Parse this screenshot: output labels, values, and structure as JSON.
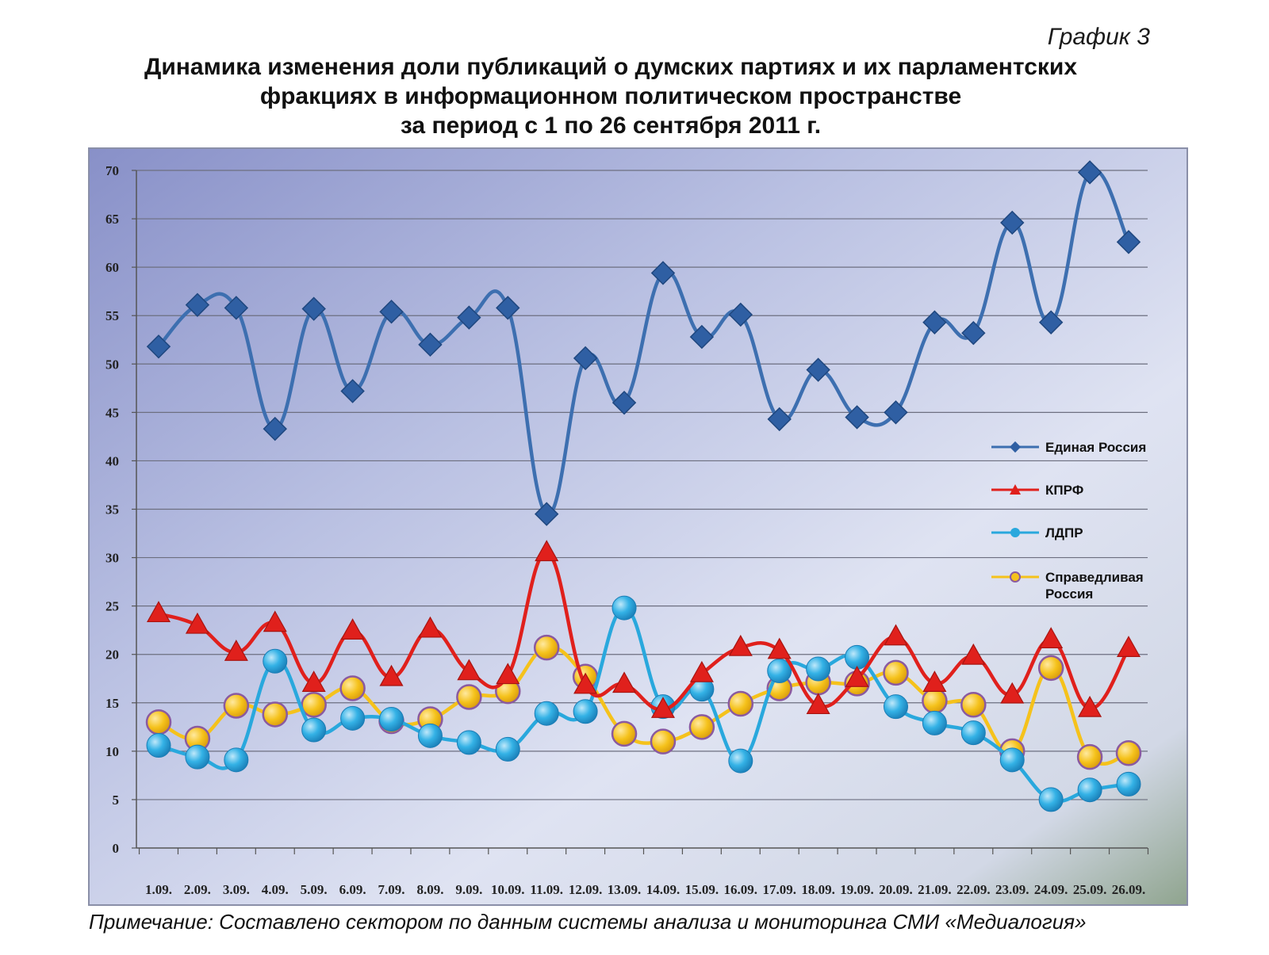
{
  "caption": "График 3",
  "title_lines": [
    "Динамика изменения доли публикаций о думских партиях и их парламентских",
    "фракциях в информационном политическом пространстве",
    "за период с 1 по 26 сентября 2011 г."
  ],
  "note": "Примечание: Составлено сектором по данным системы анализа и мониторинга СМИ «Медиалогия»",
  "chart_data": {
    "type": "line",
    "title": "Динамика изменения доли публикаций о думских партиях и их парламентских фракциях в информационном политическом пространстве за период с 1 по 26 сентября 2011 г.",
    "categories": [
      "1.09.",
      "2.09.",
      "3.09.",
      "4.09.",
      "5.09.",
      "6.09.",
      "7.09.",
      "8.09.",
      "9.09.",
      "10.09.",
      "11.09.",
      "12.09.",
      "13.09.",
      "14.09.",
      "15.09.",
      "16.09.",
      "17.09.",
      "18.09.",
      "19.09.",
      "20.09.",
      "21.09.",
      "22.09.",
      "23.09.",
      "24.09.",
      "25.09.",
      "26.09."
    ],
    "ylim": [
      0,
      70
    ],
    "yticks": [
      0,
      5,
      10,
      15,
      20,
      25,
      30,
      35,
      40,
      45,
      50,
      55,
      60,
      65,
      70
    ],
    "grid": true,
    "legend_position": "right",
    "series": [
      {
        "name": "Единая Россия",
        "color": "#3d6fb0",
        "marker": "diamond",
        "values": [
          51.8,
          56.1,
          55.8,
          43.3,
          55.7,
          47.2,
          55.4,
          52.0,
          54.8,
          55.8,
          34.5,
          50.6,
          46.0,
          59.4,
          52.8,
          55.1,
          44.3,
          49.4,
          44.5,
          45.0,
          54.3,
          53.2,
          64.6,
          54.3,
          69.8,
          62.6
        ]
      },
      {
        "name": "КПРФ",
        "color": "#e0201c",
        "marker": "triangle",
        "values": [
          24.2,
          23.0,
          20.2,
          23.2,
          17.0,
          22.4,
          17.6,
          22.6,
          18.2,
          17.8,
          30.5,
          16.8,
          16.9,
          14.3,
          18.0,
          20.7,
          20.4,
          14.7,
          17.5,
          21.8,
          17.0,
          19.8,
          15.8,
          21.5,
          14.4,
          20.6
        ]
      },
      {
        "name": "ЛДПР",
        "color": "#29a8dd",
        "marker": "circle",
        "values": [
          10.6,
          9.4,
          9.1,
          19.3,
          12.2,
          13.4,
          13.3,
          11.6,
          10.9,
          10.2,
          13.9,
          14.1,
          24.8,
          14.6,
          16.4,
          9.0,
          18.3,
          18.5,
          19.7,
          14.6,
          12.9,
          11.9,
          9.1,
          5.0,
          6.0,
          6.6
        ]
      },
      {
        "name": "Справедливая Россия",
        "color": "#f5c21b",
        "marker": "circle-ring",
        "values": [
          13.0,
          11.3,
          14.7,
          13.8,
          14.8,
          16.5,
          13.1,
          13.3,
          15.6,
          16.2,
          20.7,
          17.7,
          11.8,
          11.0,
          12.5,
          14.9,
          16.5,
          17.1,
          17.0,
          18.1,
          15.2,
          14.8,
          10.0,
          18.6,
          9.4,
          9.8
        ]
      }
    ]
  }
}
